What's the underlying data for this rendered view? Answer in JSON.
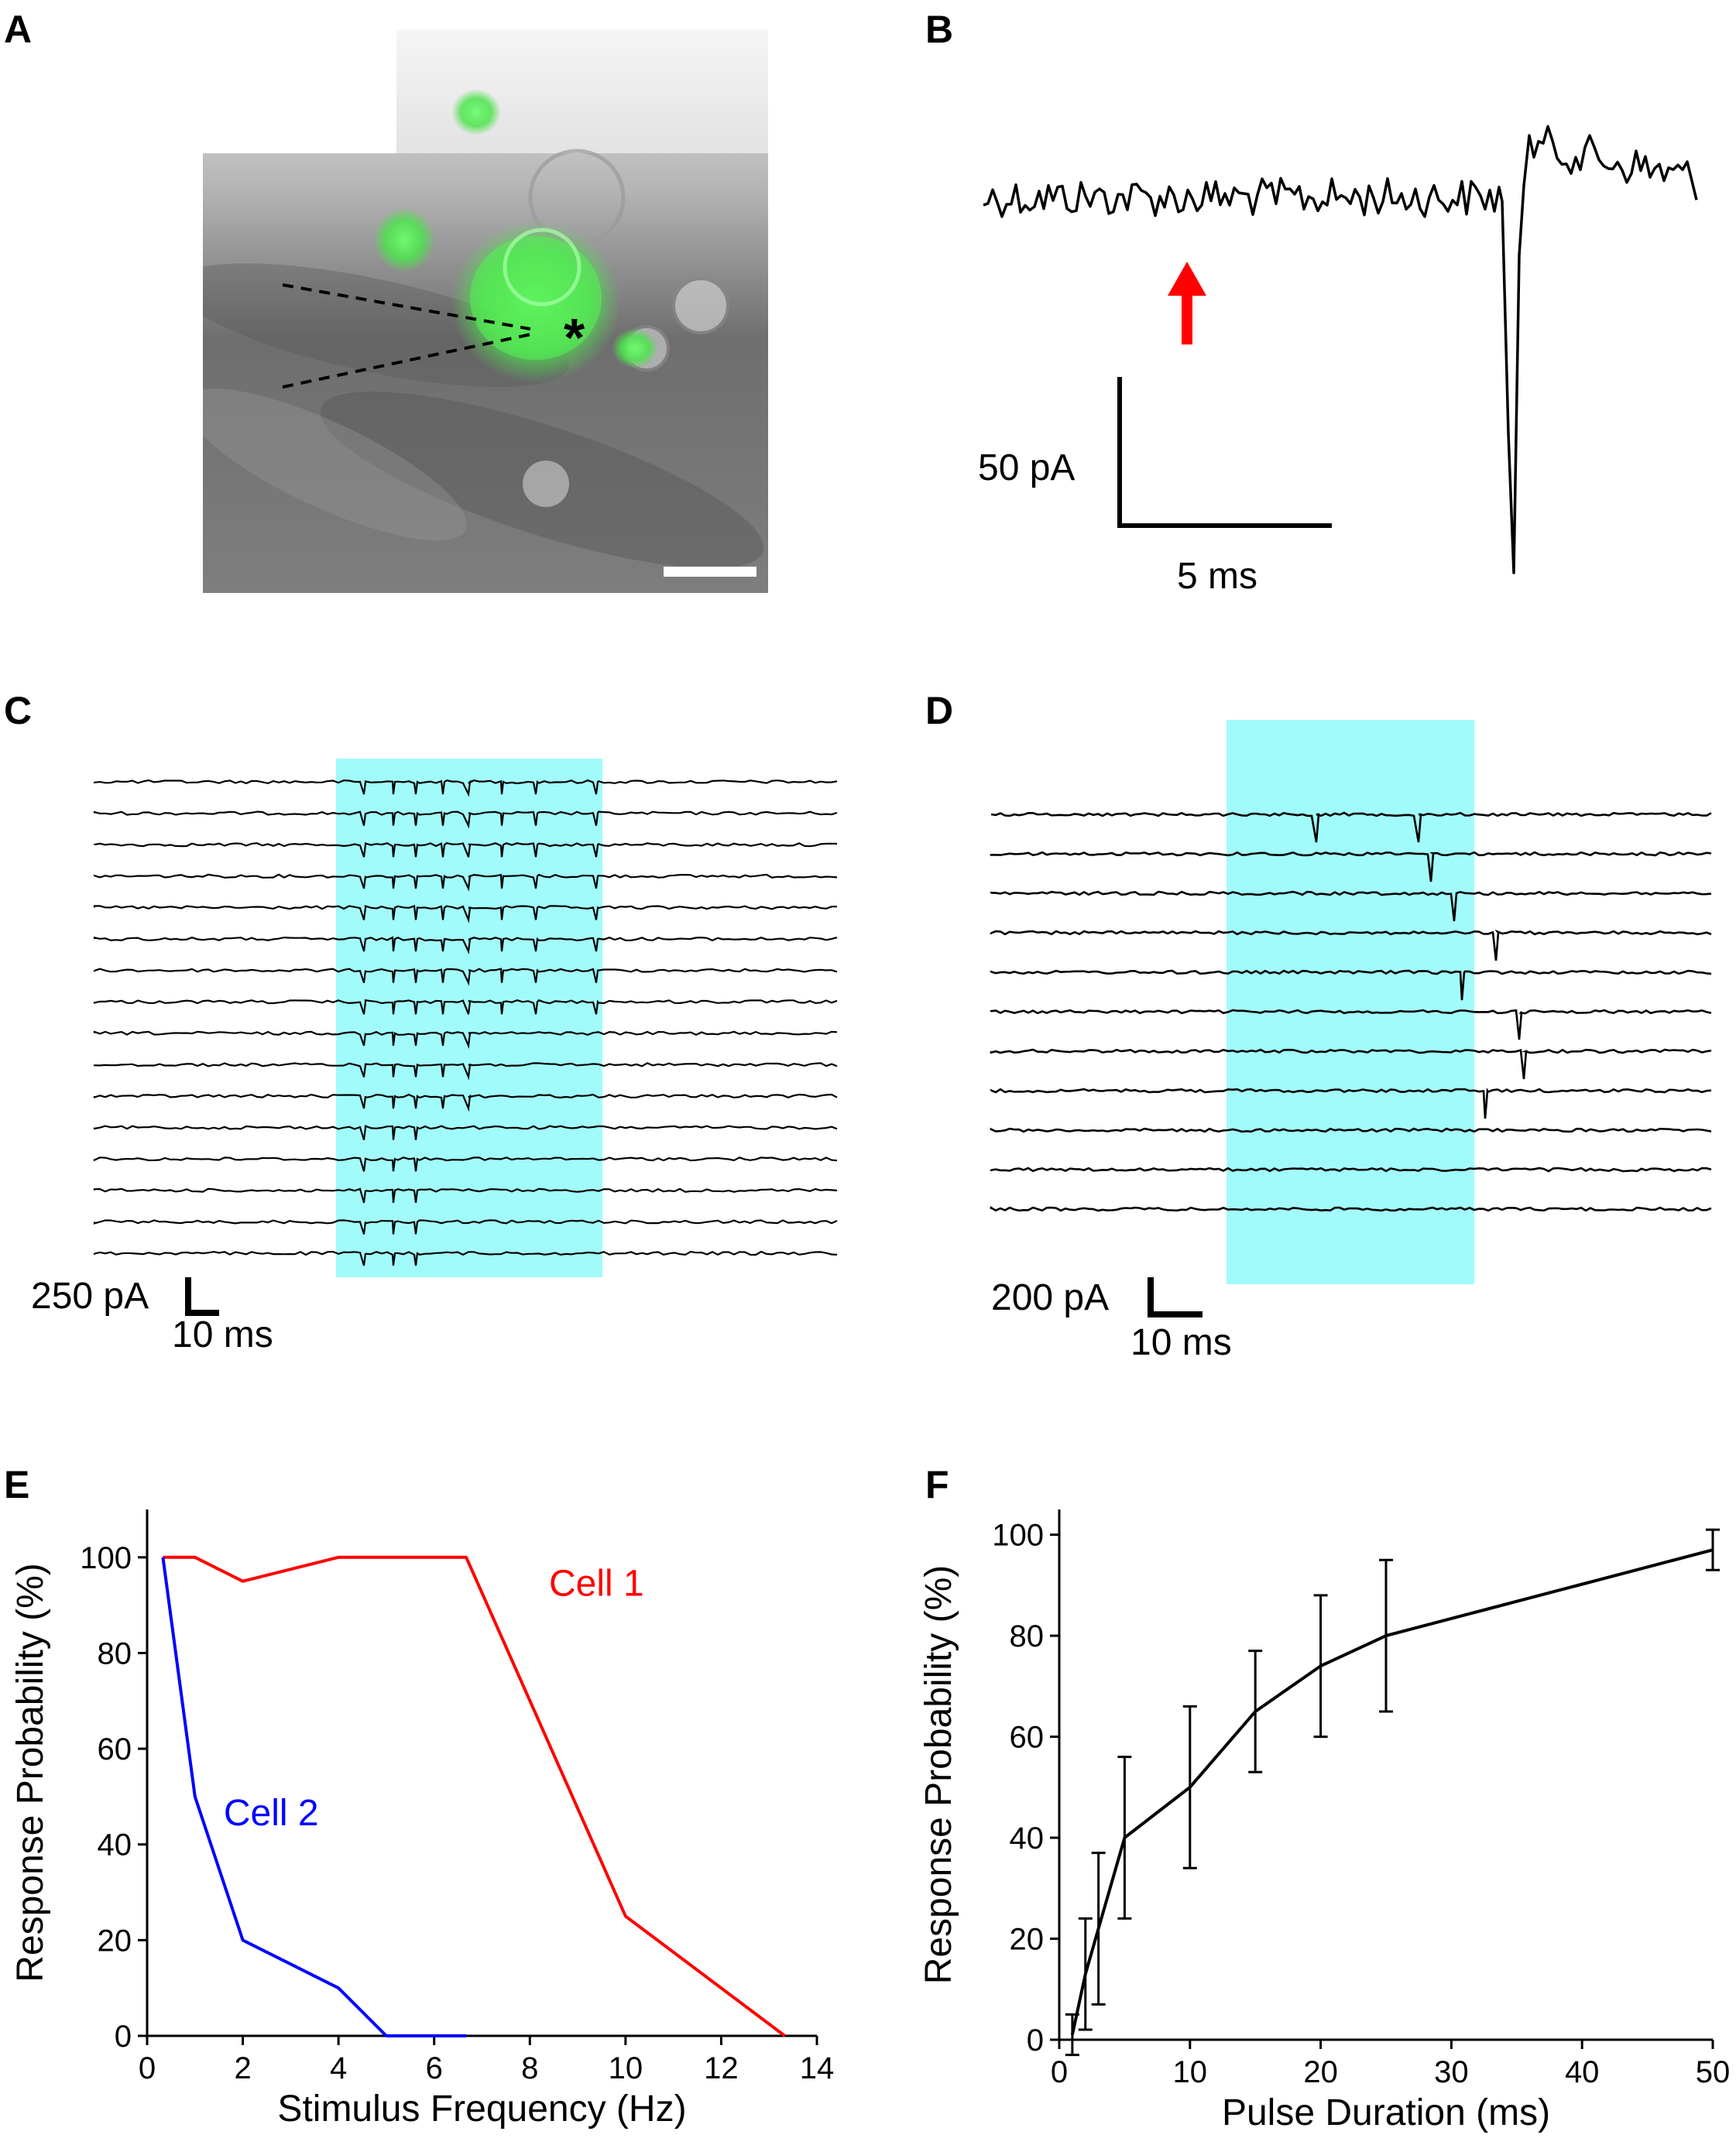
{
  "panels": {
    "a": "A",
    "b": "B",
    "c": "C",
    "d": "D",
    "e": "E",
    "f": "F"
  },
  "panel_b": {
    "scale_y_label": "50 pA",
    "scale_x_label": "5 ms",
    "arrow_color": "#ff0000"
  },
  "panel_c": {
    "scale_y_label": "250 pA",
    "scale_x_label": "10 ms",
    "traces": 16,
    "highlight_color": "#a2fbfb"
  },
  "panel_d": {
    "scale_y_label": "200 pA",
    "scale_x_label": "10 ms",
    "traces": 11,
    "highlight_color": "#a2fbfb"
  },
  "panel_a": {
    "marker": "*"
  },
  "chart_data": [
    {
      "type": "line",
      "xlabel": "Stimulus Frequency (Hz)",
      "ylabel": "Response Probability (%)",
      "xlim": [
        0,
        14
      ],
      "ylim": [
        0,
        110
      ],
      "xticks": [
        0,
        2,
        4,
        6,
        8,
        10,
        12,
        14
      ],
      "yticks": [
        0,
        20,
        40,
        60,
        80,
        100
      ],
      "series": [
        {
          "name": "Cell 1",
          "color": "#ff0000",
          "x": [
            0.33,
            1,
            2,
            4,
            5,
            6.67,
            10,
            13.33
          ],
          "y": [
            100,
            100,
            95,
            100,
            100,
            100,
            25,
            0
          ]
        },
        {
          "name": "Cell 2",
          "color": "#0000ff",
          "x": [
            0.33,
            1,
            2,
            4,
            5,
            6.67
          ],
          "y": [
            100,
            50,
            20,
            10,
            0,
            0
          ]
        }
      ]
    },
    {
      "type": "line",
      "xlabel": "Pulse Duration (ms)",
      "ylabel": "Response Probability (%)",
      "xlim": [
        0,
        50
      ],
      "ylim": [
        0,
        105
      ],
      "xticks": [
        0,
        10,
        20,
        30,
        40,
        50
      ],
      "yticks": [
        0,
        20,
        40,
        60,
        80,
        100
      ],
      "series": [
        {
          "color": "#000000",
          "x": [
            1,
            2,
            3,
            5,
            10,
            15,
            20,
            25,
            50
          ],
          "y": [
            1,
            13,
            22,
            40,
            50,
            65,
            74,
            80,
            97
          ],
          "err": [
            4,
            11,
            15,
            16,
            16,
            12,
            14,
            15,
            4
          ]
        }
      ]
    }
  ]
}
